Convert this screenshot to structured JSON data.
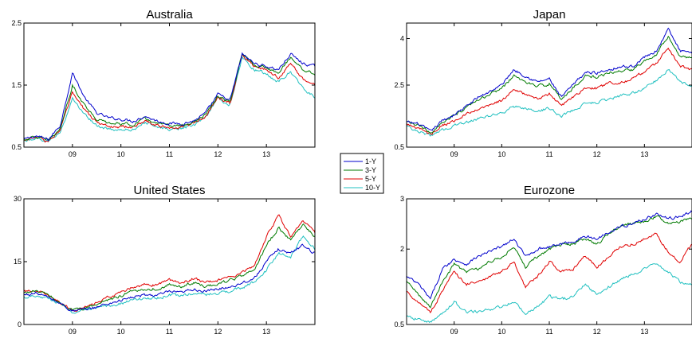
{
  "colors": {
    "1-Y": "#0000cc",
    "3-Y": "#007a00",
    "5-Y": "#e00000",
    "10-Y": "#20c0c0"
  },
  "legend": {
    "entries": [
      "1-Y",
      "3-Y",
      "5-Y",
      "10-Y"
    ],
    "placement": "center"
  },
  "chart_data": [
    {
      "type": "line",
      "title": "Australia",
      "ylim": [
        0.5,
        2.5
      ],
      "yticks": [
        0.5,
        1.5,
        2.5
      ],
      "xlim": [
        2008.0,
        2014.0
      ],
      "xticks": [
        2009,
        2010,
        2011,
        2012,
        2013
      ],
      "xticklabels": [
        "09",
        "10",
        "11",
        "12",
        "13"
      ],
      "x": [
        2008.0,
        2008.25,
        2008.5,
        2008.75,
        2009.0,
        2009.25,
        2009.5,
        2009.75,
        2010.0,
        2010.25,
        2010.5,
        2010.75,
        2011.0,
        2011.25,
        2011.5,
        2011.75,
        2012.0,
        2012.25,
        2012.5,
        2012.75,
        2013.0,
        2013.25,
        2013.5,
        2013.75,
        2014.0
      ],
      "series": [
        {
          "name": "1-Y",
          "values": [
            0.62,
            0.68,
            0.62,
            0.85,
            1.7,
            1.3,
            1.05,
            0.97,
            0.95,
            0.92,
            1.0,
            0.92,
            0.88,
            0.88,
            0.92,
            1.05,
            1.35,
            1.25,
            2.0,
            1.85,
            1.8,
            1.75,
            2.0,
            1.85,
            1.8
          ]
        },
        {
          "name": "3-Y",
          "values": [
            0.62,
            0.67,
            0.6,
            0.8,
            1.5,
            1.18,
            0.95,
            0.88,
            0.88,
            0.86,
            0.96,
            0.88,
            0.84,
            0.85,
            0.9,
            1.02,
            1.32,
            1.22,
            2.0,
            1.82,
            1.78,
            1.7,
            1.95,
            1.75,
            1.68
          ]
        },
        {
          "name": "5-Y",
          "values": [
            0.61,
            0.66,
            0.59,
            0.77,
            1.38,
            1.1,
            0.9,
            0.83,
            0.83,
            0.82,
            0.93,
            0.85,
            0.82,
            0.82,
            0.88,
            1.0,
            1.3,
            1.2,
            2.0,
            1.8,
            1.73,
            1.62,
            1.85,
            1.6,
            1.5
          ]
        },
        {
          "name": "10-Y",
          "values": [
            0.6,
            0.65,
            0.58,
            0.74,
            1.28,
            1.03,
            0.85,
            0.78,
            0.78,
            0.78,
            0.9,
            0.82,
            0.79,
            0.8,
            0.85,
            0.98,
            1.28,
            1.18,
            1.95,
            1.75,
            1.68,
            1.55,
            1.72,
            1.45,
            1.3
          ]
        }
      ]
    },
    {
      "type": "line",
      "title": "Japan",
      "ylim": [
        0.5,
        4.5
      ],
      "yticks": [
        0.5,
        2.5,
        4
      ],
      "xlim": [
        2008.0,
        2014.0
      ],
      "xticks": [
        2009,
        2010,
        2011,
        2012,
        2013
      ],
      "xticklabels": [
        "09",
        "10",
        "11",
        "12",
        "13"
      ],
      "x": [
        2008.0,
        2008.25,
        2008.5,
        2008.75,
        2009.0,
        2009.25,
        2009.5,
        2009.75,
        2010.0,
        2010.25,
        2010.5,
        2010.75,
        2011.0,
        2011.25,
        2011.5,
        2011.75,
        2012.0,
        2012.25,
        2012.5,
        2012.75,
        2013.0,
        2013.25,
        2013.5,
        2013.75,
        2014.0
      ],
      "series": [
        {
          "name": "1-Y",
          "values": [
            1.3,
            1.25,
            1.0,
            1.35,
            1.55,
            1.8,
            2.1,
            2.3,
            2.5,
            3.0,
            2.8,
            2.6,
            2.7,
            2.1,
            2.5,
            2.9,
            2.9,
            3.0,
            3.1,
            3.1,
            3.4,
            3.6,
            4.3,
            3.6,
            3.5
          ]
        },
        {
          "name": "3-Y",
          "values": [
            1.3,
            1.2,
            0.95,
            1.3,
            1.5,
            1.75,
            2.0,
            2.2,
            2.4,
            2.8,
            2.6,
            2.45,
            2.55,
            2.05,
            2.4,
            2.8,
            2.75,
            2.9,
            2.95,
            3.0,
            3.3,
            3.5,
            4.1,
            3.4,
            3.4
          ]
        },
        {
          "name": "5-Y",
          "values": [
            1.25,
            1.1,
            0.92,
            1.2,
            1.35,
            1.55,
            1.7,
            1.85,
            2.0,
            2.35,
            2.2,
            2.05,
            2.2,
            1.85,
            2.1,
            2.4,
            2.4,
            2.55,
            2.6,
            2.7,
            2.95,
            3.2,
            3.7,
            3.1,
            3.0
          ]
        },
        {
          "name": "10-Y",
          "values": [
            1.2,
            1.0,
            0.88,
            1.05,
            1.2,
            1.3,
            1.4,
            1.5,
            1.6,
            1.8,
            1.75,
            1.65,
            1.75,
            1.5,
            1.7,
            1.9,
            1.95,
            2.05,
            2.15,
            2.25,
            2.4,
            2.65,
            3.0,
            2.6,
            2.5
          ]
        }
      ]
    },
    {
      "type": "line",
      "title": "United States",
      "ylim": [
        0,
        30
      ],
      "yticks": [
        0,
        15,
        30
      ],
      "xlim": [
        2008.0,
        2014.0
      ],
      "xticks": [
        2009,
        2010,
        2011,
        2012,
        2013
      ],
      "xticklabels": [
        "09",
        "10",
        "11",
        "12",
        "13"
      ],
      "x": [
        2008.0,
        2008.25,
        2008.5,
        2008.75,
        2009.0,
        2009.25,
        2009.5,
        2009.75,
        2010.0,
        2010.25,
        2010.5,
        2010.75,
        2011.0,
        2011.25,
        2011.5,
        2011.75,
        2012.0,
        2012.25,
        2012.5,
        2012.75,
        2013.0,
        2013.25,
        2013.5,
        2013.75,
        2014.0
      ],
      "series": [
        {
          "name": "1-Y",
          "values": [
            7.0,
            7.5,
            6.5,
            5.0,
            3.2,
            3.5,
            4.2,
            5.0,
            5.8,
            6.5,
            7.0,
            7.0,
            7.8,
            7.5,
            8.5,
            7.8,
            8.5,
            9.0,
            10.0,
            11.0,
            15.0,
            18.0,
            17.0,
            19.0,
            17.0
          ]
        },
        {
          "name": "3-Y",
          "values": [
            7.5,
            8.0,
            7.0,
            5.2,
            3.3,
            3.8,
            4.8,
            6.0,
            6.8,
            8.0,
            8.5,
            8.5,
            9.5,
            9.0,
            10.0,
            9.0,
            9.8,
            10.5,
            11.5,
            13.0,
            19.0,
            23.0,
            20.0,
            24.0,
            21.0
          ]
        },
        {
          "name": "5-Y",
          "values": [
            7.8,
            8.2,
            7.2,
            5.3,
            3.3,
            4.0,
            5.0,
            6.5,
            7.5,
            8.8,
            9.5,
            9.5,
            10.5,
            10.0,
            11.0,
            10.0,
            10.5,
            11.2,
            12.3,
            14.0,
            21.0,
            26.0,
            21.0,
            25.0,
            22.0
          ]
        },
        {
          "name": "10-Y",
          "values": [
            6.5,
            7.0,
            6.3,
            5.0,
            3.0,
            3.2,
            3.8,
            4.5,
            5.0,
            5.8,
            6.3,
            6.3,
            7.0,
            6.8,
            7.5,
            7.0,
            7.5,
            8.0,
            8.8,
            10.0,
            13.0,
            17.0,
            16.0,
            21.0,
            18.0
          ]
        }
      ]
    },
    {
      "type": "line",
      "title": "Eurozone",
      "ylim": [
        0.5,
        3
      ],
      "yticks": [
        0.5,
        2,
        3
      ],
      "xlim": [
        2008.0,
        2014.0
      ],
      "xticks": [
        2009,
        2010,
        2011,
        2012,
        2013
      ],
      "xticklabels": [
        "09",
        "10",
        "11",
        "12",
        "13"
      ],
      "x": [
        2008.0,
        2008.25,
        2008.5,
        2008.75,
        2009.0,
        2009.25,
        2009.5,
        2009.75,
        2010.0,
        2010.25,
        2010.5,
        2010.75,
        2011.0,
        2011.25,
        2011.5,
        2011.75,
        2012.0,
        2012.25,
        2012.5,
        2012.75,
        2013.0,
        2013.25,
        2013.5,
        2013.75,
        2014.0
      ],
      "series": [
        {
          "name": "1-Y",
          "values": [
            1.45,
            1.3,
            1.0,
            1.6,
            1.8,
            1.7,
            1.85,
            1.95,
            2.05,
            2.2,
            1.85,
            2.0,
            2.05,
            2.1,
            2.15,
            2.25,
            2.2,
            2.35,
            2.45,
            2.5,
            2.6,
            2.7,
            2.6,
            2.65,
            2.75
          ]
        },
        {
          "name": "3-Y",
          "values": [
            1.35,
            1.1,
            0.85,
            1.35,
            1.7,
            1.55,
            1.6,
            1.75,
            1.85,
            2.05,
            1.65,
            1.85,
            2.0,
            2.1,
            2.1,
            2.2,
            2.1,
            2.3,
            2.45,
            2.5,
            2.55,
            2.65,
            2.5,
            2.55,
            2.6
          ]
        },
        {
          "name": "5-Y",
          "values": [
            1.15,
            0.95,
            0.75,
            1.15,
            1.55,
            1.3,
            1.35,
            1.45,
            1.55,
            1.75,
            1.25,
            1.45,
            1.75,
            1.55,
            1.6,
            1.85,
            1.65,
            1.85,
            2.05,
            2.1,
            2.2,
            2.3,
            1.95,
            1.75,
            2.1
          ]
        },
        {
          "name": "10-Y",
          "values": [
            0.65,
            0.6,
            0.55,
            0.7,
            0.95,
            0.75,
            0.75,
            0.8,
            0.85,
            0.95,
            0.72,
            0.85,
            1.05,
            1.0,
            1.05,
            1.3,
            1.1,
            1.25,
            1.4,
            1.5,
            1.6,
            1.7,
            1.55,
            1.35,
            1.3
          ]
        }
      ]
    }
  ]
}
